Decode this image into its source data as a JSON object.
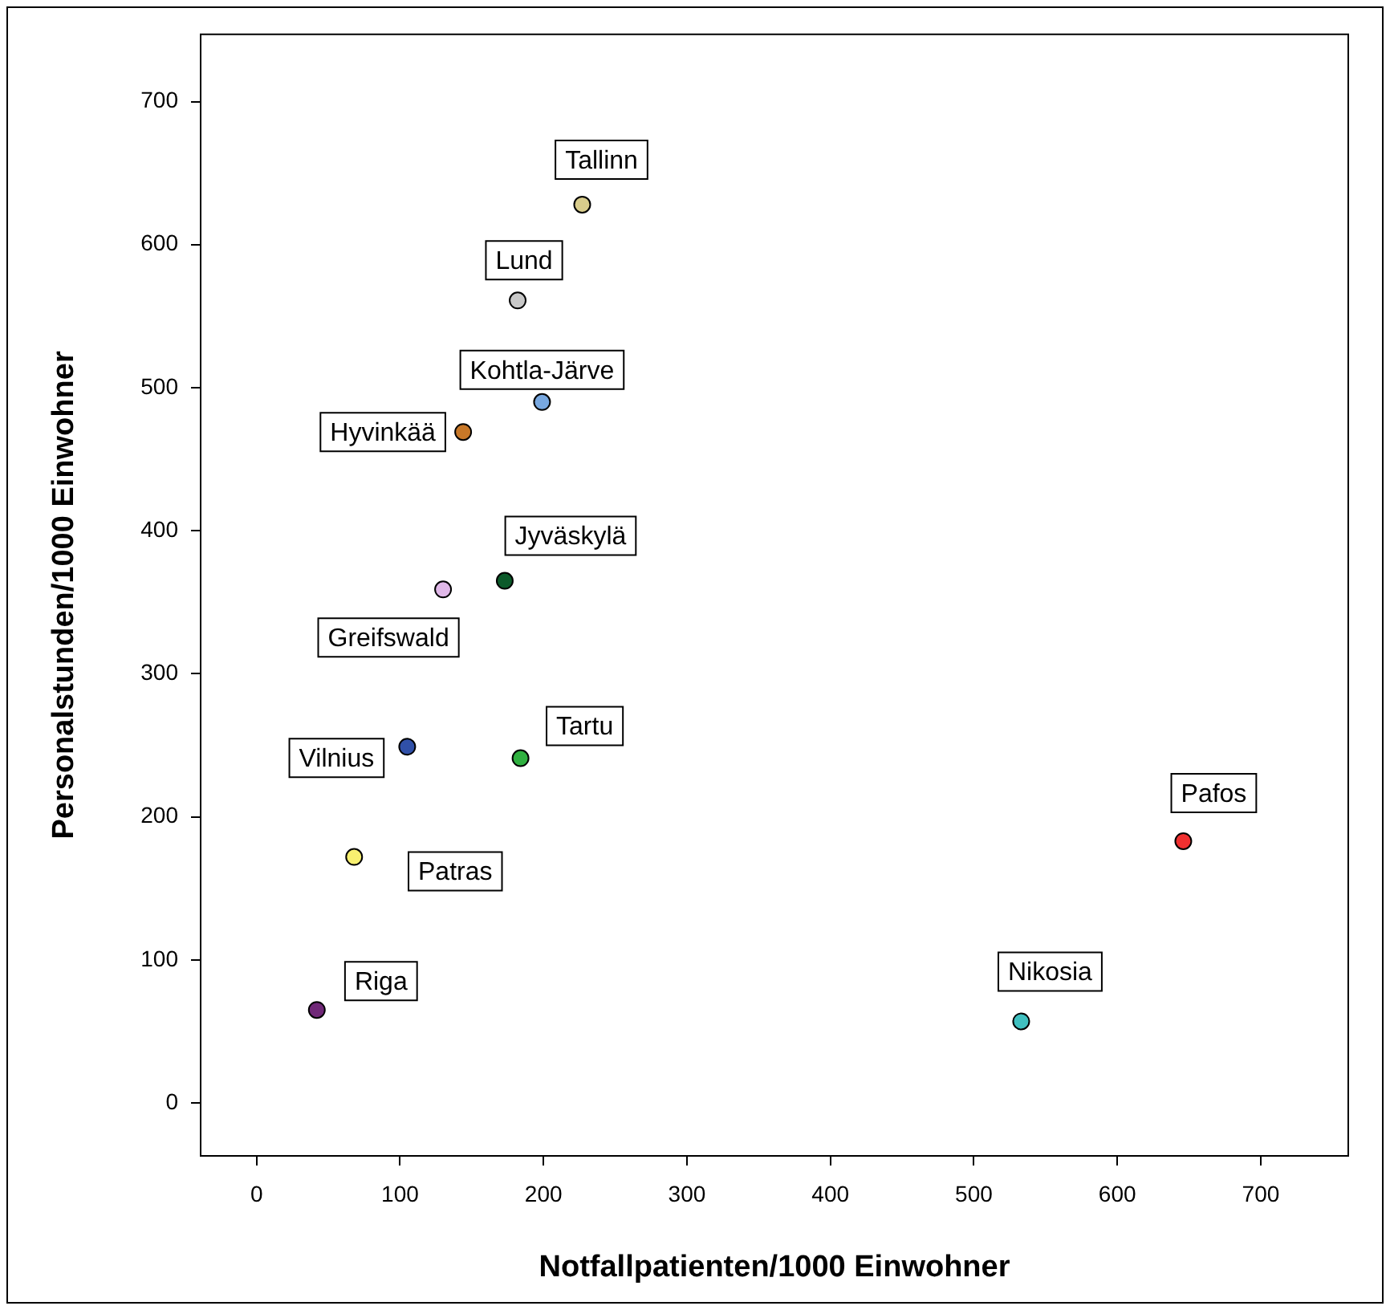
{
  "chart_data": {
    "type": "scatter",
    "xlabel": "Notfallpatienten/1000 Einwohner",
    "ylabel": "Personalstunden/1000 Einwohner",
    "xlim": [
      -39,
      761
    ],
    "ylim": [
      -37,
      747
    ],
    "xticks": [
      0,
      100,
      200,
      300,
      400,
      500,
      600,
      700
    ],
    "yticks": [
      0,
      100,
      200,
      300,
      400,
      500,
      600,
      700
    ],
    "grid": false,
    "legend": false,
    "marker": "circle",
    "series": [
      {
        "name": "Tallinn",
        "color": "#d8cc8c",
        "x": [
          227
        ],
        "values": [
          628
        ]
      },
      {
        "name": "Lund",
        "color": "#c8c8c8",
        "x": [
          182
        ],
        "values": [
          561
        ]
      },
      {
        "name": "Kohtla-Järve",
        "color": "#78a8e0",
        "x": [
          199
        ],
        "values": [
          490
        ]
      },
      {
        "name": "Hyvinkää",
        "color": "#c87828",
        "x": [
          144
        ],
        "values": [
          469
        ]
      },
      {
        "name": "Jyväskylä",
        "color": "#0c5a2a",
        "x": [
          173
        ],
        "values": [
          365
        ]
      },
      {
        "name": "Greifswald",
        "color": "#e0b8e8",
        "x": [
          130
        ],
        "values": [
          359
        ]
      },
      {
        "name": "Vilnius",
        "color": "#3050a8",
        "x": [
          105
        ],
        "values": [
          249
        ]
      },
      {
        "name": "Tartu",
        "color": "#30b040",
        "x": [
          184
        ],
        "values": [
          241
        ]
      },
      {
        "name": "Patras",
        "color": "#f8f070",
        "x": [
          68
        ],
        "values": [
          172
        ]
      },
      {
        "name": "Riga",
        "color": "#702878",
        "x": [
          42
        ],
        "values": [
          65
        ]
      },
      {
        "name": "Pafos",
        "color": "#f03030",
        "x": [
          646
        ],
        "values": [
          183
        ]
      },
      {
        "name": "Nikosia",
        "color": "#40c0c0",
        "x": [
          533
        ],
        "values": [
          57
        ]
      }
    ]
  }
}
